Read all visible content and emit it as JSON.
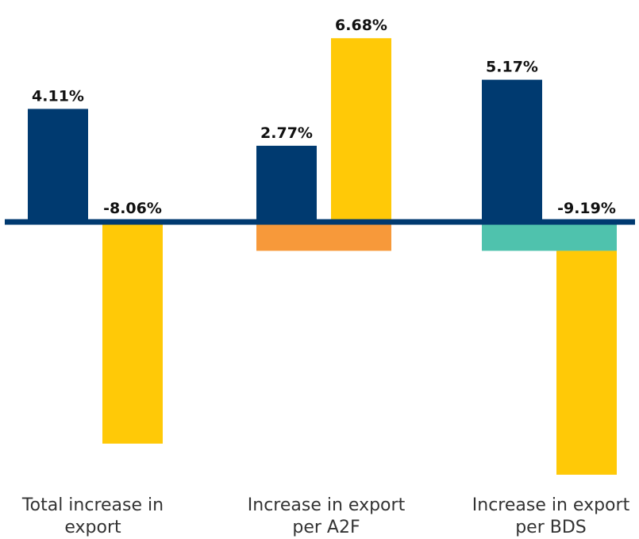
{
  "chart_data": {
    "type": "bar",
    "title": "",
    "xlabel": "",
    "ylabel": "",
    "ylim": [
      -10.5,
      8.3
    ],
    "grid": false,
    "legend": "none",
    "groups": [
      {
        "category_line1": "Total increase in",
        "category_line2": "export",
        "bars": [
          {
            "value": 4.11,
            "label": "4.11%",
            "color": "#003a70"
          },
          {
            "value": -8.06,
            "label": "-8.06%",
            "color": "#ffc907"
          }
        ],
        "band": null
      },
      {
        "category_line1": "Increase in export",
        "category_line2": "per A2F",
        "bars": [
          {
            "value": 2.77,
            "label": "2.77%",
            "color": "#003a70"
          },
          {
            "value": 6.68,
            "label": "6.68%",
            "color": "#ffc907"
          }
        ],
        "band": {
          "from": 0,
          "to": -1.05,
          "color": "#f7993a"
        }
      },
      {
        "category_line1": "Increase in export",
        "category_line2": "per BDS",
        "bars": [
          {
            "value": 5.17,
            "label": "5.17%",
            "color": "#003a70"
          },
          {
            "value": -9.19,
            "label": "-9.19%",
            "color": "#ffc907",
            "start": -1.05
          }
        ],
        "band": {
          "from": 0,
          "to": -1.05,
          "color": "#4fc2ad"
        }
      }
    ],
    "zero_line_color": "#003a70"
  }
}
